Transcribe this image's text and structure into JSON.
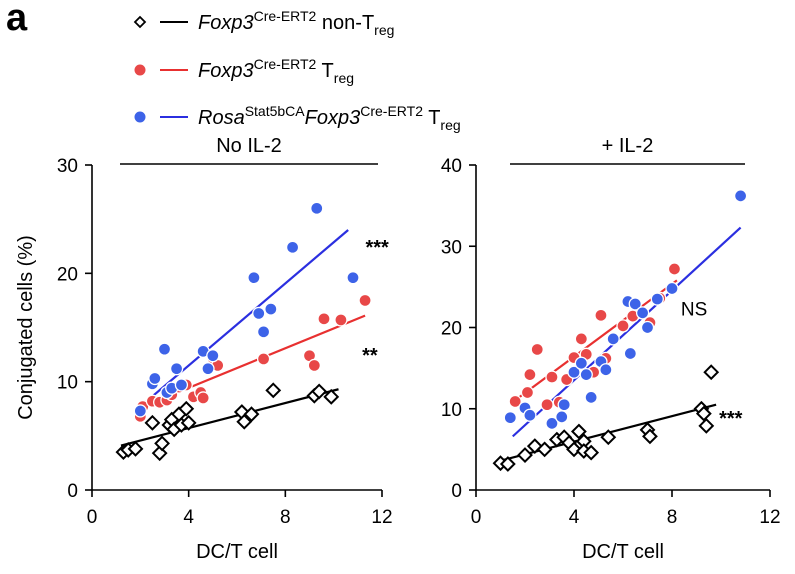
{
  "figure_label": "a",
  "colors": {
    "non_treg": "#000000",
    "treg": "#e83030",
    "treg_fill": "#e84848",
    "stat5": "#2b2fe0",
    "stat5_fill": "#3d63e8"
  },
  "legend": [
    {
      "key": "non_treg",
      "marker": "diamond",
      "parts": [
        {
          "text": "Foxp3",
          "style": "italic"
        },
        {
          "text": "Cre-ERT2",
          "style": "sup"
        },
        {
          "text": " non-T",
          "style": "normal"
        },
        {
          "text": "reg",
          "style": "sub"
        }
      ]
    },
    {
      "key": "treg",
      "marker": "circle",
      "parts": [
        {
          "text": "Foxp3",
          "style": "italic"
        },
        {
          "text": "Cre-ERT2",
          "style": "sup"
        },
        {
          "text": " T",
          "style": "normal"
        },
        {
          "text": "reg",
          "style": "sub"
        }
      ]
    },
    {
      "key": "stat5",
      "marker": "circle",
      "parts": [
        {
          "text": "Rosa",
          "style": "italic"
        },
        {
          "text": "Stat5bCA",
          "style": "sup"
        },
        {
          "text": "Foxp3",
          "style": "italic"
        },
        {
          "text": "Cre-ERT2",
          "style": "sup"
        },
        {
          "text": " T",
          "style": "normal"
        },
        {
          "text": "reg",
          "style": "sub"
        }
      ]
    }
  ],
  "chart_data": [
    {
      "type": "scatter",
      "title": "No IL-2",
      "xlabel": "DC/T cell",
      "ylabel": "Conjugated cells (%)",
      "xlim": [
        0,
        12
      ],
      "ylim": [
        0,
        30
      ],
      "xticks": [
        0,
        4,
        8,
        12
      ],
      "yticks": [
        0,
        10,
        20,
        30
      ],
      "grid": false,
      "series": [
        {
          "key": "non_treg",
          "points": [
            [
              1.3,
              3.5
            ],
            [
              1.5,
              3.7
            ],
            [
              1.8,
              3.8
            ],
            [
              2.5,
              6.2
            ],
            [
              2.8,
              3.4
            ],
            [
              2.9,
              4.3
            ],
            [
              3.2,
              6.0
            ],
            [
              3.3,
              6.5
            ],
            [
              3.4,
              5.6
            ],
            [
              3.6,
              7.0
            ],
            [
              3.7,
              6.0
            ],
            [
              3.9,
              7.5
            ],
            [
              4.0,
              6.2
            ],
            [
              6.2,
              7.2
            ],
            [
              6.3,
              6.3
            ],
            [
              6.6,
              7.0
            ],
            [
              7.5,
              9.2
            ],
            [
              9.2,
              8.7
            ],
            [
              9.4,
              9.1
            ],
            [
              9.9,
              8.6
            ]
          ],
          "fit": [
            [
              1.2,
              4.1
            ],
            [
              10.2,
              9.3
            ]
          ]
        },
        {
          "key": "treg",
          "points": [
            [
              2.0,
              6.8
            ],
            [
              2.1,
              7.7
            ],
            [
              2.5,
              8.2
            ],
            [
              2.8,
              8.1
            ],
            [
              3.1,
              8.3
            ],
            [
              3.3,
              8.8
            ],
            [
              3.6,
              9.5
            ],
            [
              3.9,
              9.7
            ],
            [
              4.2,
              8.6
            ],
            [
              4.5,
              9.0
            ],
            [
              4.6,
              8.5
            ],
            [
              5.0,
              12.2
            ],
            [
              5.2,
              11.5
            ],
            [
              7.1,
              12.1
            ],
            [
              9.0,
              12.4
            ],
            [
              9.2,
              11.5
            ],
            [
              9.6,
              15.8
            ],
            [
              10.3,
              15.7
            ],
            [
              11.3,
              17.5
            ]
          ],
          "fit": [
            [
              2.0,
              7.6
            ],
            [
              11.3,
              16.1
            ]
          ]
        },
        {
          "key": "stat5",
          "points": [
            [
              2.0,
              7.3
            ],
            [
              2.5,
              9.8
            ],
            [
              2.6,
              10.3
            ],
            [
              3.0,
              13.0
            ],
            [
              3.1,
              9.0
            ],
            [
              3.3,
              9.4
            ],
            [
              3.5,
              11.2
            ],
            [
              3.7,
              9.7
            ],
            [
              4.6,
              12.8
            ],
            [
              4.8,
              11.2
            ],
            [
              5.0,
              12.4
            ],
            [
              6.7,
              19.6
            ],
            [
              6.9,
              16.3
            ],
            [
              7.1,
              14.6
            ],
            [
              7.4,
              16.7
            ],
            [
              8.3,
              22.4
            ],
            [
              9.3,
              26.0
            ],
            [
              10.8,
              19.6
            ]
          ],
          "fit": [
            [
              2.0,
              7.7
            ],
            [
              10.6,
              24.0
            ]
          ]
        }
      ],
      "annotations": [
        {
          "text": "***",
          "x": 11.8,
          "y": 21.8
        },
        {
          "text": "**",
          "x": 11.5,
          "y": 11.8
        }
      ]
    },
    {
      "type": "scatter",
      "title": "+ IL-2",
      "xlabel": "DC/T cell",
      "ylabel": "",
      "xlim": [
        0,
        12
      ],
      "ylim": [
        0,
        40
      ],
      "xticks": [
        0,
        4,
        8,
        12
      ],
      "yticks": [
        0,
        10,
        20,
        30,
        40
      ],
      "grid": false,
      "series": [
        {
          "key": "non_treg",
          "points": [
            [
              1.0,
              3.3
            ],
            [
              1.3,
              3.2
            ],
            [
              2.0,
              4.3
            ],
            [
              2.4,
              5.4
            ],
            [
              2.8,
              5.0
            ],
            [
              3.3,
              6.2
            ],
            [
              3.6,
              6.5
            ],
            [
              3.8,
              5.8
            ],
            [
              4.0,
              5.0
            ],
            [
              4.2,
              7.2
            ],
            [
              4.4,
              6.0
            ],
            [
              4.4,
              4.8
            ],
            [
              4.7,
              4.6
            ],
            [
              5.4,
              6.5
            ],
            [
              7.0,
              7.4
            ],
            [
              7.1,
              6.6
            ],
            [
              9.2,
              10.0
            ],
            [
              9.3,
              9.4
            ],
            [
              9.4,
              7.9
            ],
            [
              9.6,
              14.5
            ]
          ],
          "fit": [
            [
              1.0,
              3.6
            ],
            [
              9.8,
              10.5
            ]
          ]
        },
        {
          "key": "treg",
          "points": [
            [
              1.6,
              10.9
            ],
            [
              2.1,
              12.0
            ],
            [
              2.2,
              14.2
            ],
            [
              2.5,
              17.3
            ],
            [
              2.9,
              10.5
            ],
            [
              3.1,
              13.9
            ],
            [
              3.4,
              10.8
            ],
            [
              3.7,
              13.6
            ],
            [
              4.0,
              16.3
            ],
            [
              4.3,
              18.6
            ],
            [
              4.5,
              16.7
            ],
            [
              4.8,
              14.5
            ],
            [
              5.1,
              21.5
            ],
            [
              5.3,
              16.2
            ],
            [
              6.0,
              20.2
            ],
            [
              6.4,
              21.4
            ],
            [
              7.1,
              20.6
            ],
            [
              7.5,
              23.6
            ],
            [
              8.1,
              27.2
            ]
          ],
          "fit": [
            [
              1.4,
              10.6
            ],
            [
              8.2,
              25.8
            ]
          ]
        },
        {
          "key": "stat5",
          "points": [
            [
              1.4,
              8.9
            ],
            [
              2.0,
              10.1
            ],
            [
              2.2,
              9.2
            ],
            [
              3.1,
              8.2
            ],
            [
              3.5,
              9.0
            ],
            [
              3.6,
              10.5
            ],
            [
              4.0,
              14.5
            ],
            [
              4.3,
              15.6
            ],
            [
              4.5,
              14.2
            ],
            [
              4.7,
              11.4
            ],
            [
              5.1,
              15.8
            ],
            [
              5.3,
              14.8
            ],
            [
              5.6,
              18.6
            ],
            [
              6.2,
              23.2
            ],
            [
              6.5,
              22.9
            ],
            [
              6.8,
              21.8
            ],
            [
              6.3,
              16.8
            ],
            [
              7.0,
              20.0
            ],
            [
              7.4,
              23.5
            ],
            [
              8.0,
              24.8
            ],
            [
              10.8,
              36.2
            ]
          ],
          "fit": [
            [
              1.5,
              6.6
            ],
            [
              10.8,
              32.3
            ]
          ]
        }
      ],
      "annotations": [
        {
          "text": "NS",
          "x": 8.9,
          "y": 21.5
        },
        {
          "text": "***",
          "x": 10.4,
          "y": 8.0
        }
      ]
    }
  ]
}
